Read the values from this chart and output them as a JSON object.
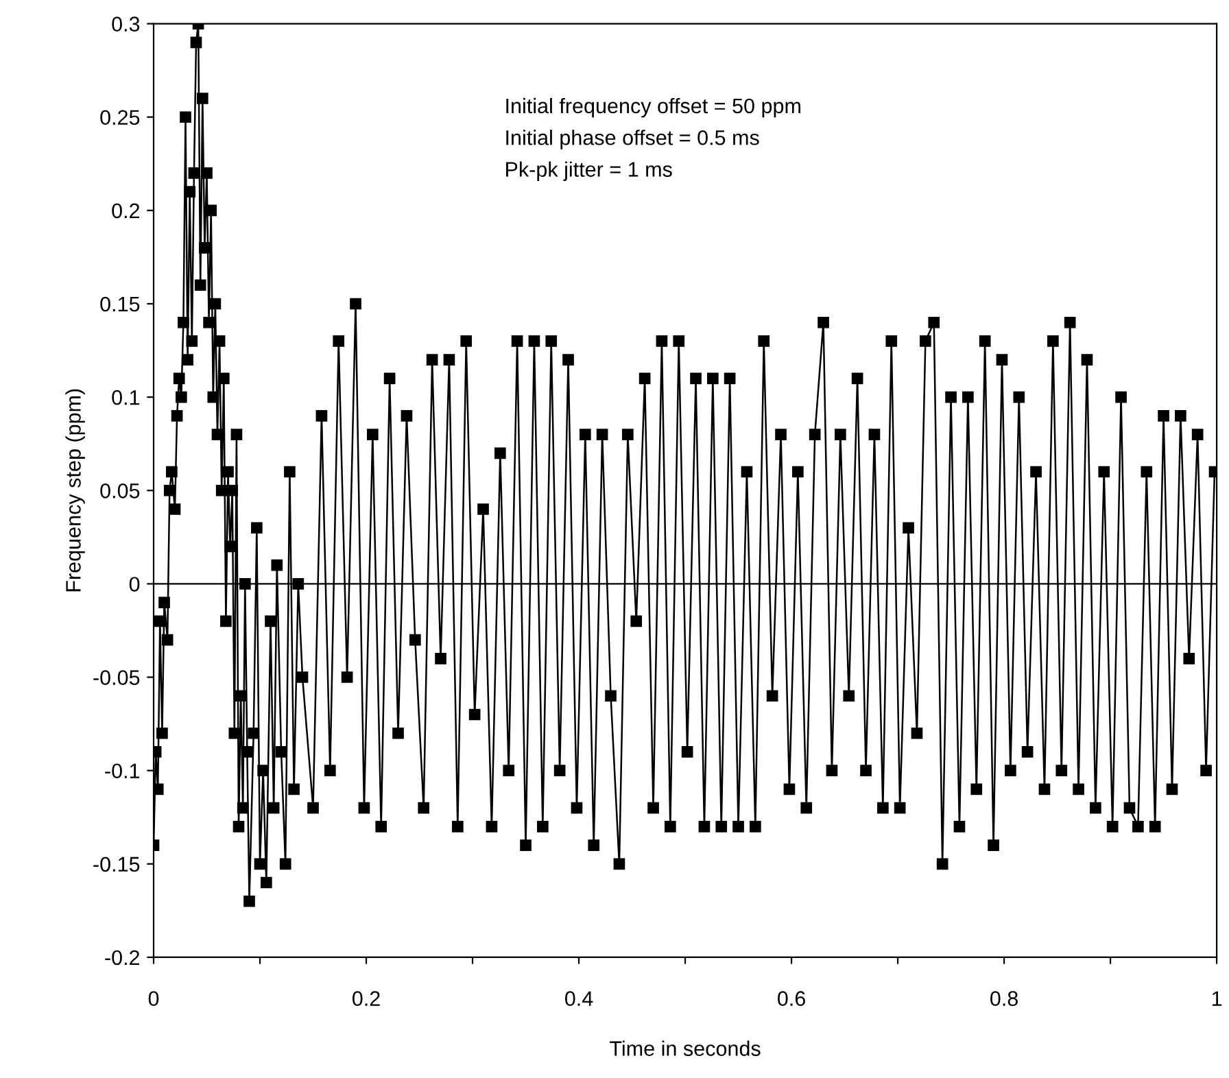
{
  "chart_data": {
    "type": "line",
    "xlabel": "Time in seconds",
    "ylabel": "Frequency step (ppm)",
    "annotations": [
      "Initial frequency offset = 50 ppm",
      "Initial phase offset = 0.5 ms",
      "Pk-pk jitter = 1 ms"
    ],
    "xlim": [
      0,
      1
    ],
    "ylim": [
      -0.2,
      0.3
    ],
    "xticks": [
      0,
      {
        "value": 0.1,
        "label": null
      },
      0.2,
      {
        "value": 0.3,
        "label": null
      },
      0.4,
      {
        "value": 0.5,
        "label": null
      },
      0.6,
      {
        "value": 0.7,
        "label": null
      },
      0.8,
      {
        "value": 0.9,
        "label": null
      },
      1
    ],
    "yticks": [
      -0.2,
      -0.15,
      -0.1,
      -0.05,
      0,
      0.05,
      0.1,
      0.15,
      0.2,
      0.25,
      0.3
    ],
    "grid": false,
    "marker": "square",
    "line_style": "solid",
    "ref_lines": [
      {
        "axis": "y",
        "value": 0,
        "color": "#000000"
      }
    ],
    "series": [
      {
        "color": "#000000",
        "x": [
          0,
          0.002,
          0.004,
          0.006,
          0.008,
          0.01,
          0.013,
          0.015,
          0.017,
          0.02,
          0.022,
          0.024,
          0.026,
          0.028,
          0.03,
          0.032,
          0.034,
          0.036,
          0.038,
          0.04,
          0.042,
          0.044,
          0.046,
          0.048,
          0.05,
          0.052,
          0.054,
          0.056,
          0.058,
          0.06,
          0.062,
          0.064,
          0.066,
          0.068,
          0.07,
          0.072,
          0.074,
          0.076,
          0.078,
          0.08,
          0.082,
          0.084,
          0.086,
          0.088,
          0.09,
          0.094,
          0.097,
          0.1,
          0.103,
          0.106,
          0.11,
          0.113,
          0.116,
          0.12,
          0.124,
          0.128,
          0.132,
          0.136,
          0.14,
          0.15,
          0.158,
          0.166,
          0.174,
          0.182,
          0.19,
          0.198,
          0.206,
          0.214,
          0.222,
          0.23,
          0.238,
          0.246,
          0.254,
          0.262,
          0.27,
          0.278,
          0.286,
          0.294,
          0.302,
          0.31,
          0.318,
          0.326,
          0.334,
          0.342,
          0.35,
          0.358,
          0.366,
          0.374,
          0.382,
          0.39,
          0.398,
          0.406,
          0.414,
          0.422,
          0.43,
          0.438,
          0.446,
          0.454,
          0.462,
          0.47,
          0.478,
          0.486,
          0.494,
          0.502,
          0.51,
          0.518,
          0.526,
          0.534,
          0.542,
          0.55,
          0.558,
          0.566,
          0.574,
          0.582,
          0.59,
          0.598,
          0.606,
          0.614,
          0.622,
          0.63,
          0.638,
          0.646,
          0.654,
          0.662,
          0.67,
          0.678,
          0.686,
          0.694,
          0.702,
          0.71,
          0.718,
          0.726,
          0.734,
          0.742,
          0.75,
          0.758,
          0.766,
          0.774,
          0.782,
          0.79,
          0.798,
          0.806,
          0.814,
          0.822,
          0.83,
          0.838,
          0.846,
          0.854,
          0.862,
          0.87,
          0.878,
          0.886,
          0.894,
          0.902,
          0.91,
          0.918,
          0.926,
          0.934,
          0.942,
          0.95,
          0.958,
          0.966,
          0.974,
          0.982,
          0.99,
          0.998
        ],
        "values": [
          -0.14,
          -0.09,
          -0.11,
          -0.02,
          -0.08,
          -0.01,
          -0.03,
          0.05,
          0.06,
          0.04,
          0.09,
          0.11,
          0.1,
          0.14,
          0.25,
          0.12,
          0.21,
          0.13,
          0.22,
          0.29,
          0.3,
          0.16,
          0.26,
          0.18,
          0.22,
          0.14,
          0.2,
          0.1,
          0.15,
          0.08,
          0.13,
          0.05,
          0.11,
          -0.02,
          0.06,
          0.02,
          0.05,
          -0.08,
          0.08,
          -0.13,
          -0.06,
          -0.12,
          0,
          -0.09,
          -0.17,
          -0.08,
          0.03,
          -0.15,
          -0.1,
          -0.16,
          -0.02,
          -0.12,
          0.01,
          -0.09,
          -0.15,
          0.06,
          -0.11,
          0,
          -0.05,
          -0.12,
          0.09,
          -0.1,
          0.13,
          -0.05,
          0.15,
          -0.12,
          0.08,
          -0.13,
          0.11,
          -0.08,
          0.09,
          -0.03,
          -0.12,
          0.12,
          -0.04,
          0.12,
          -0.13,
          0.13,
          -0.07,
          0.04,
          -0.13,
          0.07,
          -0.1,
          0.13,
          -0.14,
          0.13,
          -0.13,
          0.13,
          -0.1,
          0.12,
          -0.12,
          0.08,
          -0.14,
          0.08,
          -0.06,
          -0.15,
          0.08,
          -0.02,
          0.11,
          -0.12,
          0.13,
          -0.13,
          0.13,
          -0.09,
          0.11,
          -0.13,
          0.11,
          -0.13,
          0.11,
          -0.13,
          0.06,
          -0.13,
          0.13,
          -0.06,
          0.08,
          -0.11,
          0.06,
          -0.12,
          0.08,
          0.14,
          -0.1,
          0.08,
          -0.06,
          0.11,
          -0.1,
          0.08,
          -0.12,
          0.13,
          -0.12,
          0.03,
          -0.08,
          0.13,
          0.14,
          -0.15,
          0.1,
          -0.13,
          0.1,
          -0.11,
          0.13,
          -0.14,
          0.12,
          -0.1,
          0.1,
          -0.09,
          0.06,
          -0.11,
          0.13,
          -0.1,
          0.14,
          -0.11,
          0.12,
          -0.12,
          0.06,
          -0.13,
          0.1,
          -0.12,
          -0.13,
          0.06,
          -0.13,
          0.09,
          -0.11,
          0.09,
          -0.04,
          0.08,
          -0.1,
          0.06
        ]
      }
    ]
  }
}
